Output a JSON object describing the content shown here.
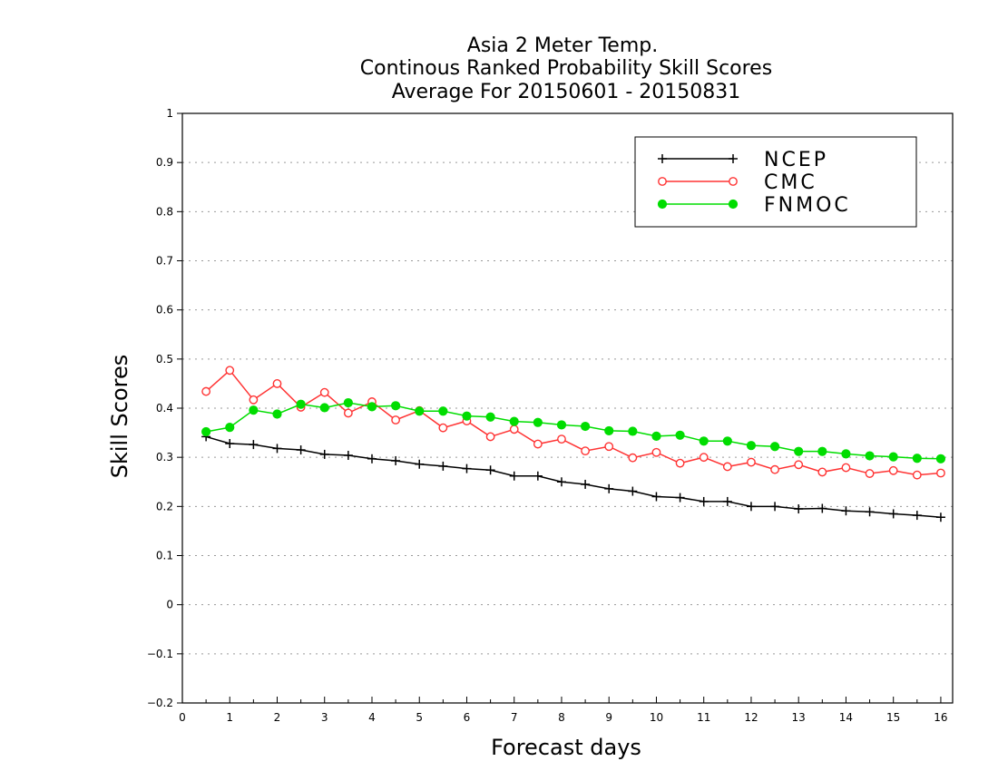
{
  "chart_data": {
    "type": "line",
    "title_lines": [
      "Asia 2 Meter Temp.",
      "Continous Ranked Probability Skill Scores",
      "Average For 20150601 - 20150831"
    ],
    "xlabel": "Forecast days",
    "ylabel": "Skill Scores",
    "xlim": [
      0,
      16.25
    ],
    "ylim": [
      -0.2,
      1
    ],
    "x_ticks": [
      0,
      1,
      2,
      3,
      4,
      5,
      6,
      7,
      8,
      9,
      10,
      11,
      12,
      13,
      14,
      15,
      16
    ],
    "y_ticks": [
      -0.2,
      -0.1,
      0,
      0.1,
      0.2,
      0.3,
      0.4,
      0.5,
      0.6,
      0.7,
      0.8,
      0.9,
      1
    ],
    "y_tick_labels": [
      "−0.2",
      "−0.1",
      "0",
      "0.1",
      "0.2",
      "0.3",
      "0.4",
      "0.5",
      "0.6",
      "0.7",
      "0.8",
      "0.9",
      "1"
    ],
    "grid": true,
    "legend_position": "top-right",
    "x": [
      0.5,
      1,
      1.5,
      2,
      2.5,
      3,
      3.5,
      4,
      4.5,
      5,
      5.5,
      6,
      6.5,
      7,
      7.5,
      8,
      8.5,
      9,
      9.5,
      10,
      10.5,
      11,
      11.5,
      12,
      12.5,
      13,
      13.5,
      14,
      14.5,
      15,
      15.5,
      16
    ],
    "series": [
      {
        "name": "NCEP",
        "color": "#000000",
        "marker": "plus",
        "values": [
          0.342,
          0.328,
          0.326,
          0.318,
          0.315,
          0.306,
          0.304,
          0.297,
          0.293,
          0.286,
          0.282,
          0.277,
          0.274,
          0.262,
          0.262,
          0.25,
          0.245,
          0.236,
          0.231,
          0.22,
          0.218,
          0.21,
          0.21,
          0.2,
          0.2,
          0.195,
          0.196,
          0.191,
          0.189,
          0.185,
          0.182,
          0.178
        ]
      },
      {
        "name": "CMC",
        "color": "#ff3333",
        "marker": "open-circle",
        "values": [
          0.434,
          0.477,
          0.417,
          0.45,
          0.402,
          0.432,
          0.39,
          0.413,
          0.376,
          0.395,
          0.36,
          0.374,
          0.342,
          0.357,
          0.327,
          0.337,
          0.313,
          0.322,
          0.299,
          0.31,
          0.288,
          0.3,
          0.281,
          0.29,
          0.275,
          0.285,
          0.27,
          0.279,
          0.267,
          0.273,
          0.264,
          0.268
        ]
      },
      {
        "name": "FNMOC",
        "color": "#00dd00",
        "marker": "filled-circle",
        "values": [
          0.352,
          0.361,
          0.396,
          0.388,
          0.408,
          0.401,
          0.411,
          0.403,
          0.405,
          0.394,
          0.394,
          0.384,
          0.382,
          0.373,
          0.371,
          0.366,
          0.363,
          0.354,
          0.353,
          0.343,
          0.345,
          0.333,
          0.333,
          0.324,
          0.322,
          0.312,
          0.312,
          0.307,
          0.303,
          0.301,
          0.298,
          0.297
        ]
      }
    ]
  }
}
